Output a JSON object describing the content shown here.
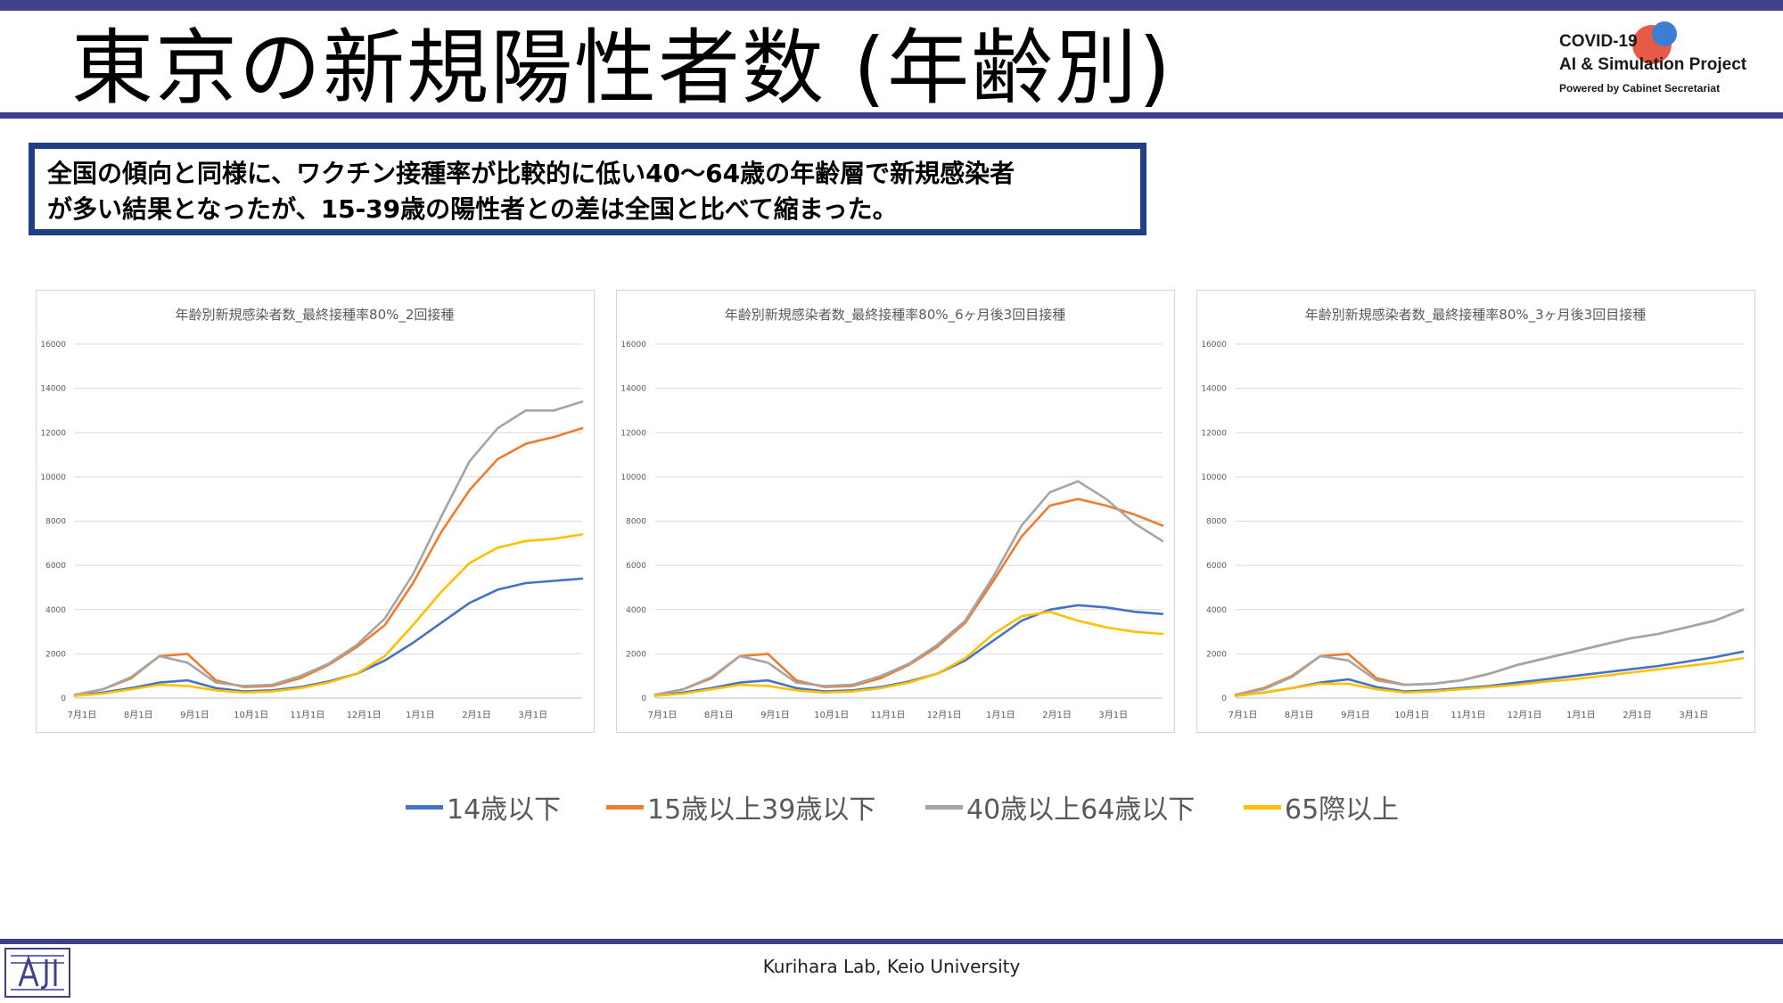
{
  "title": "東京の新規陽性者数 (年齢別)",
  "logo": {
    "line1": "COVID-19",
    "line2": "AI & Simulation Project",
    "line3": "Powered by Cabinet Secretariat"
  },
  "callout": {
    "line1": "全国の傾向と同様に、ワクチン接種率が比較的に低い40～64歳の年齢層で新規感染者",
    "line2": "が多い結果となったが、15-39歳の陽性者との差は全国と比べて縮まった。"
  },
  "legend": [
    {
      "label": "14歳以下",
      "color": "#4472c4"
    },
    {
      "label": "15歳以上39歳以下",
      "color": "#ed7d31"
    },
    {
      "label": "40歳以上64歳以下",
      "color": "#a5a5a5"
    },
    {
      "label": "65際以上",
      "color": "#ffc000"
    }
  ],
  "footer": "Kurihara Lab, Keio University",
  "chart_data": [
    {
      "type": "line",
      "title": "年齢別新規感染者数_最終接種率80%_2回接種",
      "x": [
        "7月1日",
        "7月15日",
        "8月1日",
        "8月15日",
        "9月1日",
        "9月15日",
        "10月1日",
        "10月15日",
        "11月1日",
        "11月15日",
        "12月1日",
        "12月15日",
        "1月1日",
        "1月15日",
        "2月1日",
        "2月15日",
        "3月1日",
        "3月15日",
        "3月31日"
      ],
      "x_tick_labels": [
        "7月1日",
        "8月1日",
        "9月1日",
        "10月1日",
        "11月1日",
        "12月1日",
        "1月1日",
        "2月1日",
        "3月1日"
      ],
      "ylim": [
        0,
        16000
      ],
      "y_ticks": [
        0,
        2000,
        4000,
        6000,
        8000,
        10000,
        12000,
        14000,
        16000
      ],
      "grid": true,
      "series": [
        {
          "name": "14歳以下",
          "values": [
            100,
            250,
            450,
            700,
            800,
            450,
            300,
            350,
            500,
            750,
            1100,
            1700,
            2500,
            3400,
            4300,
            4900,
            5200,
            5300,
            5400
          ]
        },
        {
          "name": "15歳以上39歳以下",
          "values": [
            150,
            400,
            900,
            1900,
            2000,
            800,
            500,
            550,
            900,
            1500,
            2300,
            3300,
            5200,
            7500,
            9400,
            10800,
            11500,
            11800,
            12200
          ]
        },
        {
          "name": "40歳以上64歳以下",
          "values": [
            150,
            400,
            950,
            1900,
            1600,
            700,
            550,
            600,
            1000,
            1550,
            2400,
            3600,
            5600,
            8200,
            10700,
            12200,
            13000,
            13000,
            13400
          ]
        },
        {
          "name": "65際以上",
          "values": [
            100,
            200,
            400,
            600,
            550,
            350,
            250,
            300,
            450,
            700,
            1100,
            1900,
            3300,
            4800,
            6100,
            6800,
            7100,
            7200,
            7400
          ]
        }
      ]
    },
    {
      "type": "line",
      "title": "年齢別新規感染者数_最終接種率80%_6ヶ月後3回目接種",
      "x": [
        "7月1日",
        "7月15日",
        "8月1日",
        "8月15日",
        "9月1日",
        "9月15日",
        "10月1日",
        "10月15日",
        "11月1日",
        "11月15日",
        "12月1日",
        "12月15日",
        "1月1日",
        "1月15日",
        "2月1日",
        "2月15日",
        "3月1日",
        "3月15日",
        "3月31日"
      ],
      "x_tick_labels": [
        "7月1日",
        "8月1日",
        "9月1日",
        "10月1日",
        "11月1日",
        "12月1日",
        "1月1日",
        "2月1日",
        "3月1日"
      ],
      "ylim": [
        0,
        16000
      ],
      "y_ticks": [
        0,
        2000,
        4000,
        6000,
        8000,
        10000,
        12000,
        14000,
        16000
      ],
      "grid": true,
      "series": [
        {
          "name": "14歳以下",
          "values": [
            100,
            250,
            450,
            700,
            800,
            450,
            300,
            350,
            500,
            750,
            1100,
            1700,
            2600,
            3500,
            4000,
            4200,
            4100,
            3900,
            3800
          ]
        },
        {
          "name": "15歳以上39歳以下",
          "values": [
            150,
            400,
            900,
            1900,
            2000,
            800,
            500,
            550,
            900,
            1500,
            2300,
            3400,
            5300,
            7300,
            8700,
            9000,
            8700,
            8300,
            7800
          ]
        },
        {
          "name": "40歳以上64歳以下",
          "values": [
            150,
            400,
            950,
            1900,
            1600,
            700,
            550,
            600,
            1000,
            1550,
            2400,
            3500,
            5500,
            7800,
            9300,
            9800,
            9000,
            7900,
            7100
          ]
        },
        {
          "name": "65際以上",
          "values": [
            100,
            200,
            400,
            600,
            550,
            350,
            250,
            300,
            450,
            700,
            1100,
            1800,
            2900,
            3700,
            3900,
            3500,
            3200,
            3000,
            2900
          ]
        }
      ]
    },
    {
      "type": "line",
      "title": "年齢別新規感染者数_最終接種率80%_3ヶ月後3回目接種",
      "x": [
        "7月1日",
        "7月15日",
        "8月1日",
        "8月15日",
        "9月1日",
        "9月15日",
        "10月1日",
        "10月15日",
        "11月1日",
        "11月15日",
        "12月1日",
        "12月15日",
        "1月1日",
        "1月15日",
        "2月1日",
        "2月15日",
        "3月1日",
        "3月15日",
        "3月31日"
      ],
      "x_tick_labels": [
        "7月1日",
        "8月1日",
        "9月1日",
        "10月1日",
        "11月1日",
        "12月1日",
        "1月1日",
        "2月1日",
        "3月1日"
      ],
      "ylim": [
        0,
        16000
      ],
      "y_ticks": [
        0,
        2000,
        4000,
        6000,
        8000,
        10000,
        12000,
        14000,
        16000
      ],
      "grid": true,
      "series": [
        {
          "name": "14歳以下",
          "values": [
            100,
            250,
            450,
            700,
            850,
            500,
            300,
            350,
            450,
            550,
            700,
            850,
            1000,
            1150,
            1300,
            1450,
            1650,
            1850,
            2100
          ]
        },
        {
          "name": "15歳以上39歳以下",
          "values": [
            150,
            450,
            1000,
            1900,
            2000,
            900,
            600,
            650,
            800,
            1100,
            1500,
            1800,
            2100,
            2400,
            2700,
            2900,
            3200,
            3500,
            4000
          ]
        },
        {
          "name": "40歳以上64歳以下",
          "values": [
            150,
            400,
            950,
            1900,
            1700,
            800,
            600,
            650,
            800,
            1100,
            1500,
            1800,
            2100,
            2400,
            2700,
            2900,
            3200,
            3500,
            4000
          ]
        },
        {
          "name": "65際以上",
          "values": [
            100,
            250,
            450,
            650,
            650,
            400,
            250,
            300,
            400,
            500,
            600,
            750,
            850,
            1000,
            1150,
            1300,
            1450,
            1600,
            1800
          ]
        }
      ]
    }
  ]
}
